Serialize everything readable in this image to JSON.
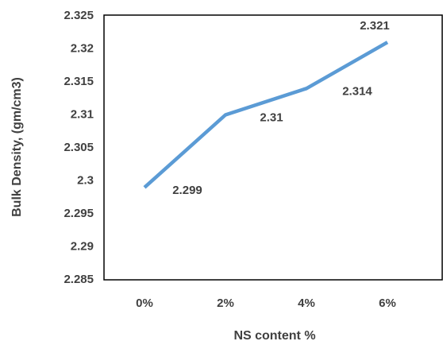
{
  "chart_data": {
    "type": "line",
    "categories": [
      "0%",
      "2%",
      "4%",
      "6%"
    ],
    "series": [
      {
        "name": "Bulk Density",
        "color": "#5b9bd5",
        "values": [
          2.299,
          2.31,
          2.314,
          2.321
        ]
      }
    ],
    "ylim": [
      2.285,
      2.325
    ],
    "yticks": [
      2.285,
      2.29,
      2.295,
      2.3,
      2.305,
      2.31,
      2.315,
      2.32,
      2.325
    ],
    "xlabel": "NS content %",
    "ylabel": "Bulk Density, (gm/cm3)",
    "grid": false,
    "legend": false
  }
}
